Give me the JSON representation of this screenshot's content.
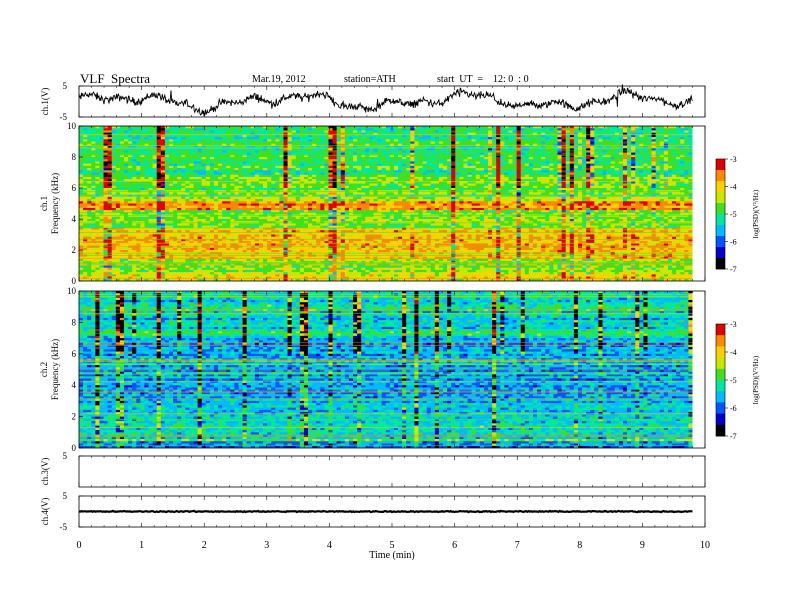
{
  "header": {
    "title": "VLF  Spectra",
    "date": "Mar.19, 2012",
    "station": "station=ATH",
    "start": "start  UT  =    12: 0  : 0"
  },
  "chart_data": [
    {
      "type": "line",
      "name": "ch1-waveform",
      "ylabel": "ch.1(V)",
      "ylim": [
        -5,
        5
      ],
      "yticks": [
        "5",
        "-5"
      ],
      "xlim": [
        0,
        10
      ],
      "x_extent": [
        0,
        9.8
      ]
    },
    {
      "type": "heatmap",
      "name": "ch1-spectrogram",
      "ylabel_channel": "ch.1",
      "ylabel": "Frequency  (kHz)",
      "ylim": [
        0,
        10
      ],
      "yticks": [
        "0",
        "2",
        "4",
        "6",
        "8",
        "10"
      ],
      "xlim": [
        0,
        10
      ],
      "x_extent": [
        0,
        9.8
      ],
      "colorbar": {
        "label": "log(PSD)(V²/Hz)",
        "range": [
          -7,
          -3
        ],
        "ticks": [
          "-3",
          "-4",
          "-5",
          "-6",
          "-7"
        ]
      },
      "band_levels": [
        {
          "freq": [
            0.0,
            0.6
          ],
          "level": -4.2
        },
        {
          "freq": [
            0.6,
            1.5
          ],
          "level": -4.6
        },
        {
          "freq": [
            1.5,
            3.5
          ],
          "level": -3.9
        },
        {
          "freq": [
            3.5,
            4.6
          ],
          "level": -4.6
        },
        {
          "freq": [
            4.6,
            5.2
          ],
          "level": -3.7
        },
        {
          "freq": [
            5.2,
            7.0
          ],
          "level": -4.7
        },
        {
          "freq": [
            7.0,
            10.0
          ],
          "level": -5.0
        }
      ]
    },
    {
      "type": "heatmap",
      "name": "ch2-spectrogram",
      "ylabel_channel": "ch.2",
      "ylabel": "Frequency  (kHz)",
      "ylim": [
        0,
        10
      ],
      "yticks": [
        "0",
        "2",
        "4",
        "6",
        "8",
        "10"
      ],
      "xlim": [
        0,
        10
      ],
      "x_extent": [
        0,
        9.8
      ],
      "colorbar": {
        "label": "log(PSD)(V²/Hz)",
        "range": [
          -7,
          -3
        ],
        "ticks": [
          "-3",
          "-4",
          "-5",
          "-6",
          "-7"
        ]
      },
      "band_levels": [
        {
          "freq": [
            0.0,
            0.4
          ],
          "level": -5.9
        },
        {
          "freq": [
            0.4,
            1.5
          ],
          "level": -5.2
        },
        {
          "freq": [
            1.5,
            3.5
          ],
          "level": -5.5
        },
        {
          "freq": [
            3.5,
            5.5
          ],
          "level": -5.6
        },
        {
          "freq": [
            5.5,
            7.0
          ],
          "level": -5.7
        },
        {
          "freq": [
            7.0,
            10.0
          ],
          "level": -5.3
        }
      ]
    },
    {
      "type": "line",
      "name": "ch3-waveform",
      "ylabel": "ch.3(V)",
      "ylim": [
        -5,
        5
      ],
      "yticks": [
        "5"
      ],
      "xlim": [
        0,
        10
      ]
    },
    {
      "type": "line",
      "name": "ch4-waveform",
      "ylabel": "ch.4(V)",
      "ylim": [
        -5,
        5
      ],
      "yticks": [
        "5",
        "-5"
      ],
      "xlim": [
        0,
        10
      ],
      "x_extent": [
        0,
        9.8
      ],
      "level": 0
    }
  ],
  "xaxis": {
    "label": "Time  (min)",
    "ticks": [
      "0",
      "1",
      "2",
      "3",
      "4",
      "5",
      "6",
      "7",
      "8",
      "9",
      "10"
    ]
  },
  "colors": {
    "axis": "#000000",
    "colormap": [
      "#000000",
      "#0000cc",
      "#0055ff",
      "#00bbff",
      "#00e8a0",
      "#40e020",
      "#c8e800",
      "#ffd000",
      "#ff8800",
      "#e00000",
      "#ffffff"
    ]
  }
}
